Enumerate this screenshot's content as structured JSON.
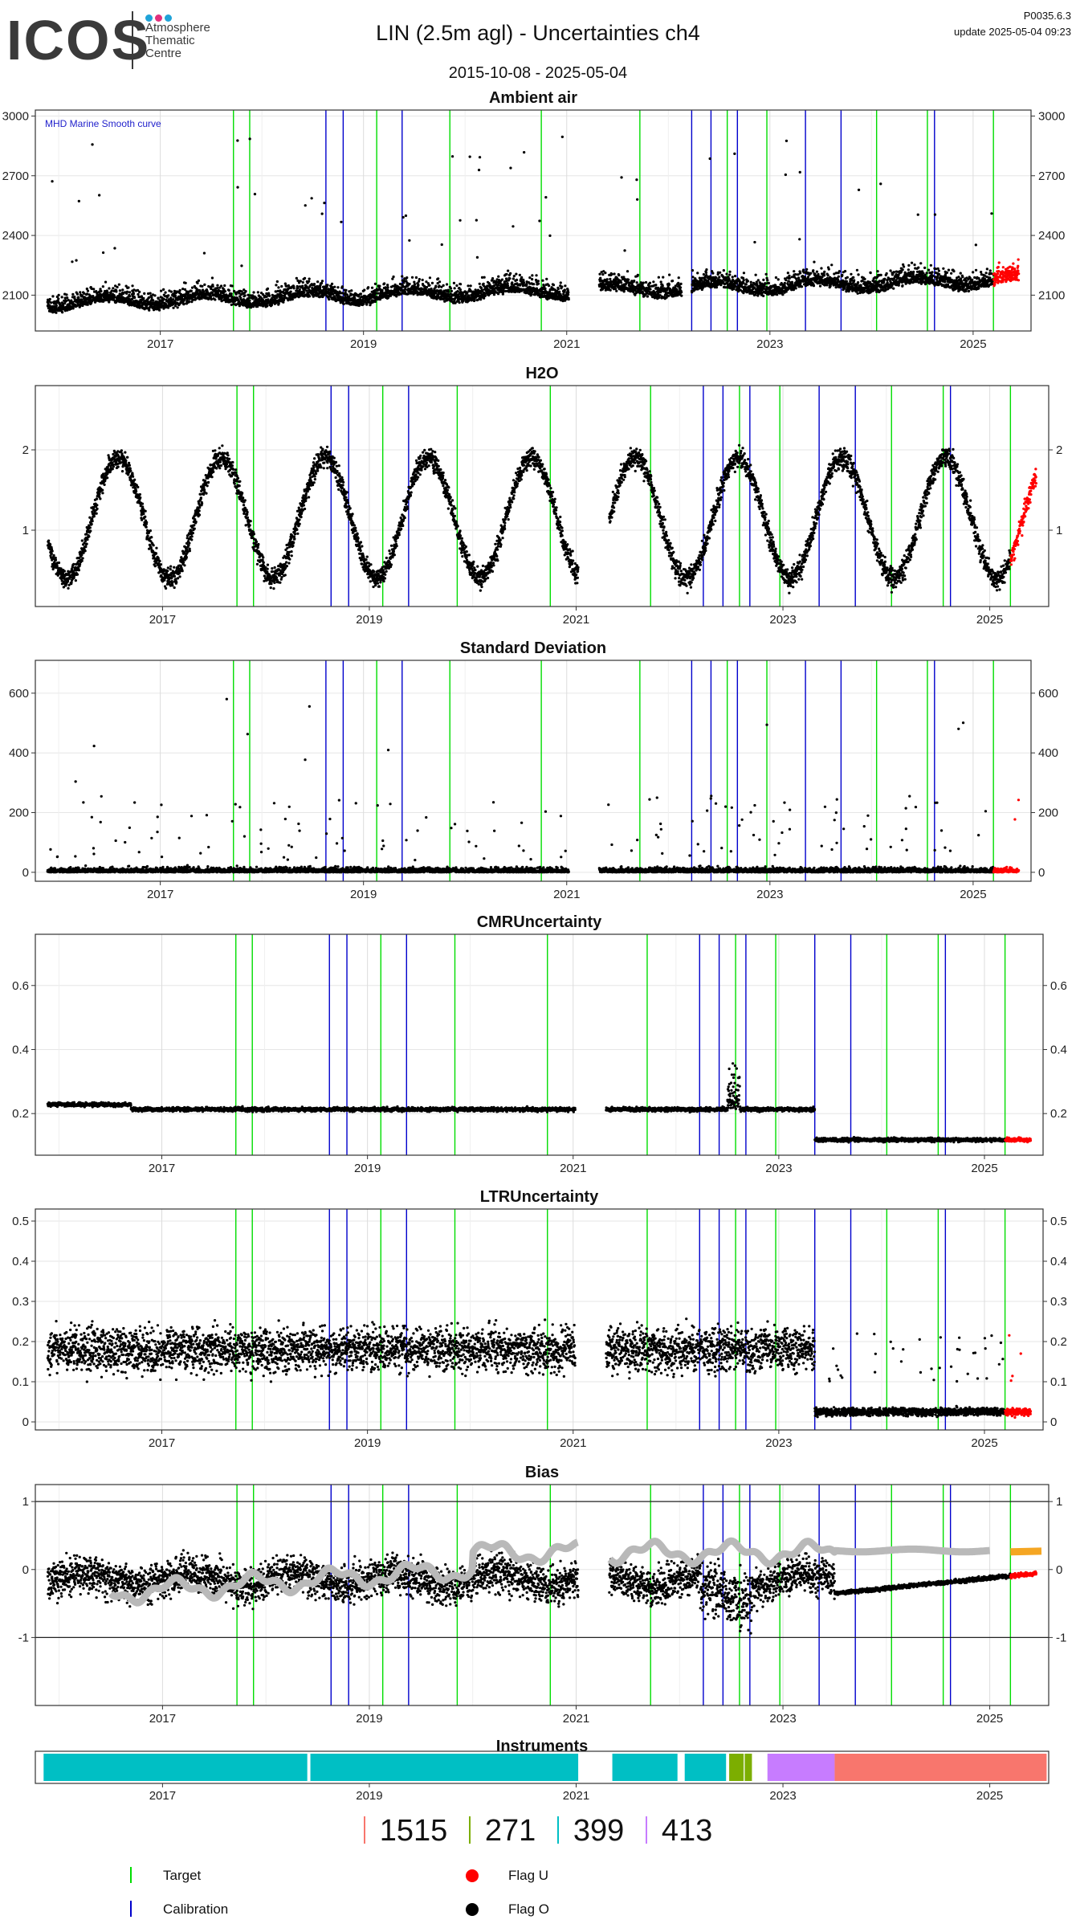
{
  "header": {
    "logo_text": "ICOS",
    "logo_subtitle": [
      "Atmosphere",
      "Thematic",
      "Centre"
    ],
    "title": "LIN  (2.5m agl) - Uncertainties ch4",
    "date_range": "2015-10-08 - 2025-05-04",
    "code": "P0035.6.3",
    "update": "update  2025-05-04 09:23",
    "logo_colors": [
      "#1fa3d8",
      "#e2307c",
      "#1fa3d8"
    ]
  },
  "chart_data": [
    {
      "type": "scatter",
      "title": "Ambient air",
      "annotation": "MHD Marine Smooth curve",
      "ylim": [
        1920,
        3030
      ],
      "yticks": [
        2100,
        2400,
        2700,
        3000
      ],
      "xlim": [
        2015.77,
        2025.57
      ],
      "xticks": [
        2017,
        2019,
        2021,
        2023,
        2025
      ],
      "baseline": 2040,
      "noise": 90,
      "spike_max": 2900,
      "trend": 12,
      "gaps": [
        [
          2021.02,
          2021.32
        ],
        [
          2022.13,
          2022.23
        ]
      ],
      "target_lines": [
        2017.72,
        2017.88,
        2019.13,
        2019.85,
        2020.75,
        2021.72,
        2022.58,
        2022.97,
        2024.05,
        2024.55,
        2025.2
      ],
      "calibration_lines": [
        2018.63,
        2018.8,
        2019.38,
        2022.23,
        2022.42,
        2022.68,
        2023.35,
        2023.7,
        2024.62
      ],
      "flag_u_start": 2025.2
    },
    {
      "type": "scatter",
      "title": "H2O",
      "ylim": [
        0.05,
        2.8
      ],
      "yticks": [
        1,
        2
      ],
      "xlim": [
        2015.77,
        2025.57
      ],
      "xticks": [
        2017,
        2019,
        2021,
        2023,
        2025
      ],
      "seasonal": true,
      "gaps": [
        [
          2021.02,
          2021.32
        ]
      ],
      "target_lines": [
        2017.72,
        2017.88,
        2019.13,
        2019.85,
        2020.75,
        2021.72,
        2022.58,
        2022.97,
        2024.05,
        2024.55,
        2025.2
      ],
      "calibration_lines": [
        2018.63,
        2018.8,
        2019.38,
        2022.23,
        2022.42,
        2022.68,
        2023.35,
        2023.7,
        2024.62
      ],
      "flag_u_start": 2025.2
    },
    {
      "type": "scatter",
      "title": "Standard Deviation",
      "ylim": [
        -30,
        710
      ],
      "yticks": [
        0,
        200,
        400,
        600
      ],
      "xlim": [
        2015.77,
        2025.57
      ],
      "xticks": [
        2017,
        2019,
        2021,
        2023,
        2025
      ],
      "baseline": 15,
      "noise": 25,
      "spike_max": 640,
      "gaps": [
        [
          2021.02,
          2021.32
        ]
      ],
      "target_lines": [
        2017.72,
        2017.88,
        2019.13,
        2019.85,
        2020.75,
        2021.72,
        2022.58,
        2022.97,
        2024.05,
        2024.55,
        2025.2
      ],
      "calibration_lines": [
        2018.63,
        2018.8,
        2019.38,
        2022.23,
        2022.42,
        2022.68,
        2023.35,
        2023.7,
        2024.62
      ],
      "flag_u_start": 2025.2
    },
    {
      "type": "scatter",
      "title": "CMRUncertainty",
      "ylim": [
        0.07,
        0.76
      ],
      "yticks": [
        0.2,
        0.4,
        0.6
      ],
      "xlim": [
        2015.77,
        2025.57
      ],
      "xticks": [
        2017,
        2019,
        2021,
        2023,
        2025
      ],
      "levels": [
        [
          2015.77,
          2016.7,
          0.228
        ],
        [
          2016.7,
          2023.35,
          0.213
        ],
        [
          2023.35,
          2025.57,
          0.118
        ]
      ],
      "noise": 0.01,
      "gaps": [
        [
          2021.02,
          2021.32
        ]
      ],
      "target_lines": [
        2017.72,
        2017.88,
        2019.13,
        2019.85,
        2020.75,
        2021.72,
        2022.58,
        2022.97,
        2024.05,
        2024.55,
        2025.2
      ],
      "calibration_lines": [
        2018.63,
        2018.8,
        2019.38,
        2022.23,
        2022.42,
        2022.68,
        2023.35,
        2023.7,
        2024.62
      ],
      "flag_u_start": 2025.2
    },
    {
      "type": "scatter",
      "title": "LTRUncertainty",
      "ylim": [
        -0.02,
        0.53
      ],
      "yticks": [
        0.0,
        0.1,
        0.2,
        0.3,
        0.4,
        0.5
      ],
      "xlim": [
        2015.77,
        2025.57
      ],
      "xticks": [
        2017,
        2019,
        2021,
        2023,
        2025
      ],
      "levels": [
        [
          2015.77,
          2023.35,
          0.18
        ],
        [
          2023.35,
          2025.57,
          0.025
        ]
      ],
      "noise": 0.07,
      "gaps": [
        [
          2021.02,
          2021.32
        ]
      ],
      "target_lines": [
        2017.72,
        2017.88,
        2019.13,
        2019.85,
        2020.75,
        2021.72,
        2022.58,
        2022.97,
        2024.05,
        2024.55,
        2025.2
      ],
      "calibration_lines": [
        2018.63,
        2018.8,
        2019.38,
        2022.23,
        2022.42,
        2022.68,
        2023.35,
        2023.7,
        2024.62
      ],
      "flag_u_start": 2025.2
    },
    {
      "type": "scatter",
      "title": "Bias",
      "ylim": [
        -2.0,
        1.25
      ],
      "yticks": [
        -1,
        0,
        1
      ],
      "hlines": [
        -1,
        1
      ],
      "xlim": [
        2015.77,
        2025.57
      ],
      "xticks": [
        2017,
        2019,
        2021,
        2023,
        2025
      ],
      "gaps": [
        [
          2021.02,
          2021.32
        ]
      ],
      "target_lines": [
        2017.72,
        2017.88,
        2019.13,
        2019.85,
        2020.75,
        2021.72,
        2022.58,
        2022.97,
        2024.05,
        2024.55,
        2025.2
      ],
      "calibration_lines": [
        2018.63,
        2018.8,
        2019.38,
        2022.23,
        2022.42,
        2022.68,
        2023.35,
        2023.7,
        2024.62
      ],
      "flag_u_start": 2025.2,
      "smooth_color": "#b9b9b9",
      "smooth_end_color": "#f5a623"
    },
    {
      "type": "bar",
      "title": "Instruments",
      "xlim": [
        2015.77,
        2025.57
      ],
      "xticks": [
        2017,
        2019,
        2021,
        2023,
        2025
      ],
      "segments": [
        {
          "start": 2015.85,
          "end": 2018.4,
          "color": "#00bfc4"
        },
        {
          "start": 2018.43,
          "end": 2021.02,
          "color": "#00bfc4"
        },
        {
          "start": 2021.35,
          "end": 2021.98,
          "color": "#00bfc4"
        },
        {
          "start": 2022.05,
          "end": 2022.45,
          "color": "#00bfc4"
        },
        {
          "start": 2022.48,
          "end": 2022.62,
          "color": "#7cae00"
        },
        {
          "start": 2022.63,
          "end": 2022.7,
          "color": "#7cae00"
        },
        {
          "start": 2022.85,
          "end": 2023.5,
          "color": "#c77cff"
        },
        {
          "start": 2023.5,
          "end": 2025.55,
          "color": "#f8766d"
        }
      ]
    }
  ],
  "instrument_counts": [
    {
      "label": "1515",
      "color": "#f8766d"
    },
    {
      "label": "271",
      "color": "#7cae00"
    },
    {
      "label": "399",
      "color": "#00bfc4"
    },
    {
      "label": "413",
      "color": "#c77cff"
    }
  ],
  "legend": {
    "target": "Target",
    "calibration": "Calibration",
    "flag_u": "Flag U",
    "flag_o": "Flag O",
    "target_color": "#00dd00",
    "calibration_color": "#0000cc",
    "flag_u_color": "#ff0000",
    "flag_o_color": "#000000"
  }
}
